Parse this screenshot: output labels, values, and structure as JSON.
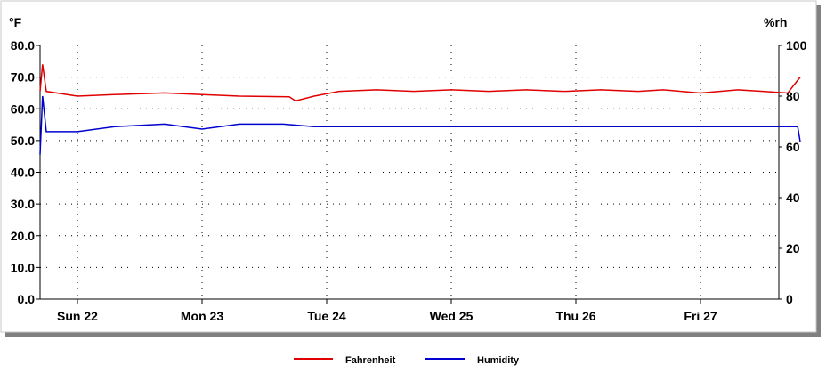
{
  "chart_data": {
    "type": "line",
    "x_categories": [
      "Sun 22",
      "Mon 23",
      "Tue 24",
      "Wed 25",
      "Thu 26",
      "Fri 27"
    ],
    "x_range_days": [
      0,
      6.1
    ],
    "left_axis": {
      "unit": "°F",
      "ylim": [
        0,
        80
      ],
      "ticks": [
        "0.0",
        "10.0",
        "20.0",
        "30.0",
        "40.0",
        "50.0",
        "60.0",
        "70.0",
        "80.0"
      ]
    },
    "right_axis": {
      "unit": "%rh",
      "ylim": [
        0,
        100
      ],
      "ticks": [
        "0",
        "20",
        "40",
        "60",
        "80",
        "100"
      ]
    },
    "grid": true,
    "legend_position": "bottom",
    "series": [
      {
        "name": "Fahrenheit",
        "axis": "left",
        "color": "#e00000",
        "x": [
          0.0,
          0.02,
          0.05,
          0.3,
          0.6,
          1.0,
          1.3,
          1.6,
          2.0,
          2.05,
          2.2,
          2.4,
          2.7,
          3.0,
          3.3,
          3.6,
          3.9,
          4.2,
          4.5,
          4.8,
          5.0,
          5.3,
          5.6,
          5.8,
          6.0,
          6.1
        ],
        "values": [
          65.5,
          74.0,
          65.5,
          64.0,
          64.5,
          65.0,
          64.5,
          64.0,
          63.8,
          62.5,
          64.0,
          65.5,
          66.0,
          65.5,
          66.0,
          65.5,
          66.0,
          65.5,
          66.0,
          65.5,
          66.0,
          65.0,
          66.0,
          65.5,
          65.0,
          70.0
        ]
      },
      {
        "name": "Humidity",
        "axis": "right",
        "color": "#0000d0",
        "x": [
          0.0,
          0.02,
          0.05,
          0.3,
          0.6,
          1.0,
          1.3,
          1.6,
          1.95,
          2.2,
          2.6,
          3.0,
          3.4,
          3.8,
          4.2,
          4.6,
          5.0,
          5.4,
          5.8,
          6.08,
          6.1
        ],
        "values": [
          57.0,
          80.0,
          66.0,
          66.0,
          68.0,
          69.0,
          67.0,
          69.0,
          69.0,
          68.0,
          68.0,
          68.0,
          68.0,
          68.0,
          68.0,
          68.0,
          68.0,
          68.0,
          68.0,
          68.0,
          62.0
        ]
      }
    ]
  }
}
